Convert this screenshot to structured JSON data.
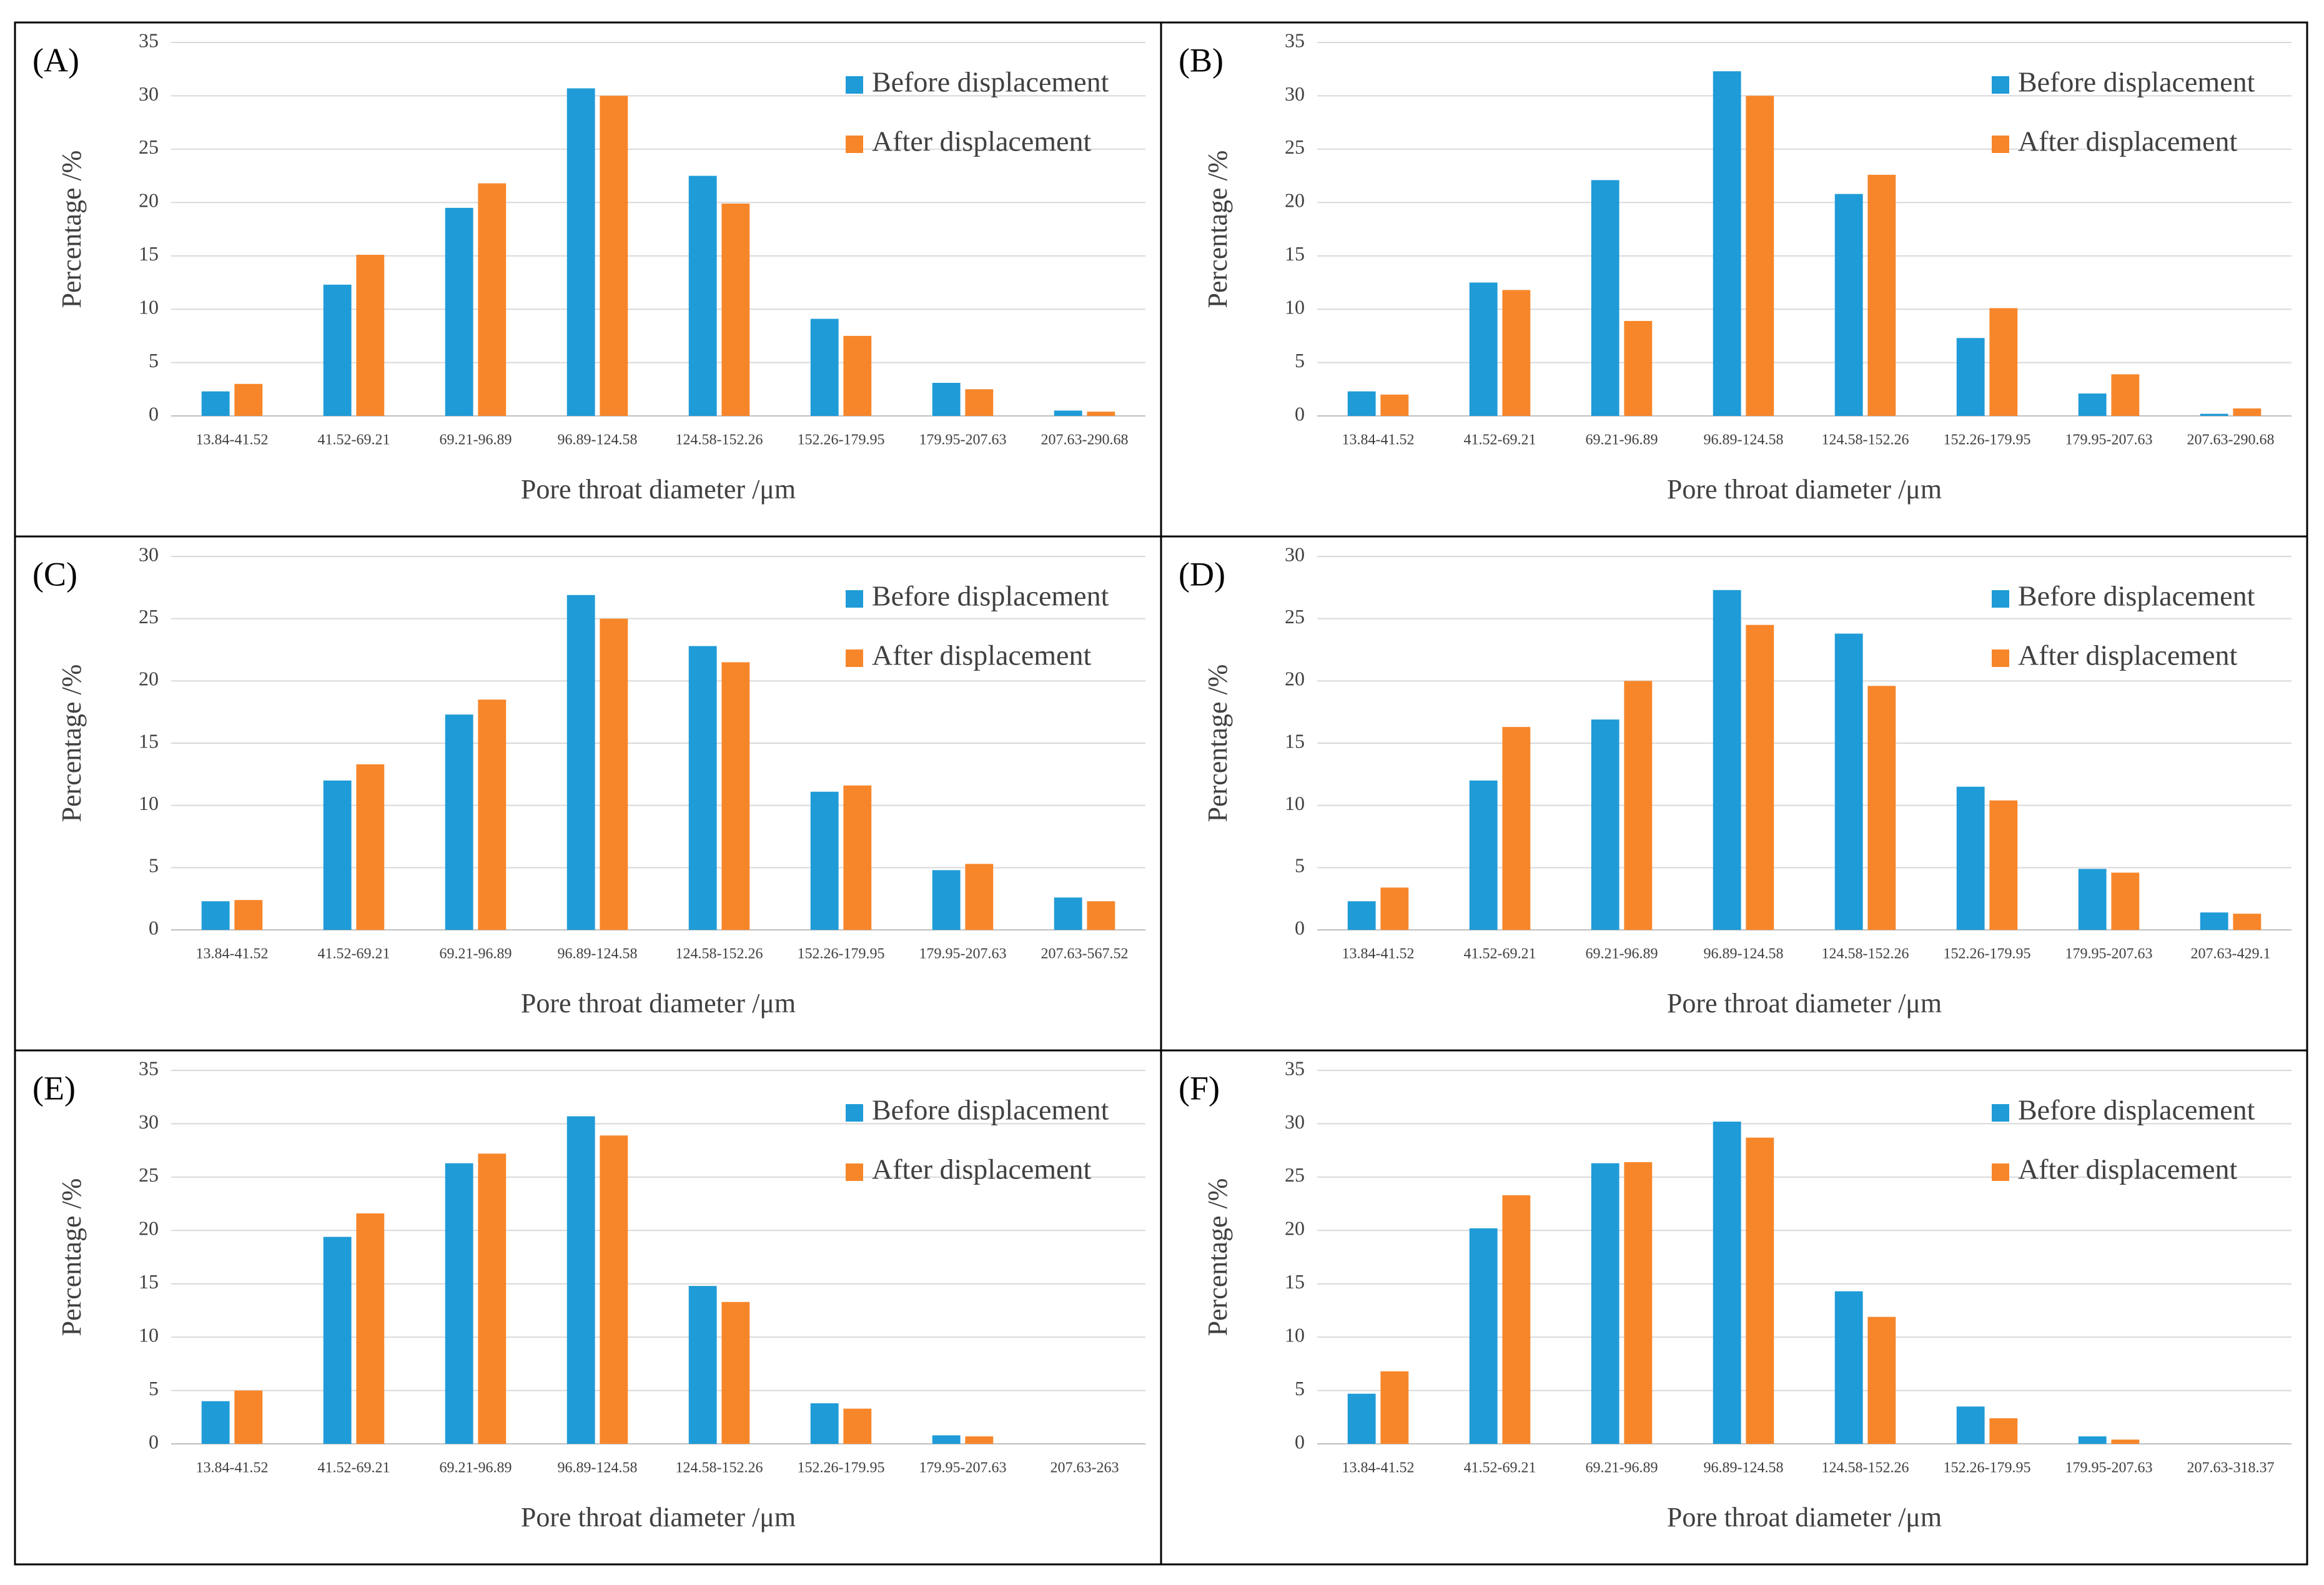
{
  "chart_data": [
    {
      "type": "bar",
      "label": "(A)",
      "xlabel": "Pore throat diameter /μm",
      "ylabel": "Percentage /%",
      "categories": [
        "13.84-41.52",
        "41.52-69.21",
        "69.21-96.89",
        "96.89-124.58",
        "124.58-152.26",
        "152.26-179.95",
        "179.95-207.63",
        "207.63-290.68"
      ],
      "series": [
        {
          "name": "Before displacement",
          "color": "#1f9bd7",
          "values": [
            2.3,
            12.3,
            19.5,
            30.7,
            22.5,
            9.1,
            3.1,
            0.5
          ]
        },
        {
          "name": "After displacement",
          "color": "#f7862a",
          "values": [
            3.0,
            15.1,
            21.8,
            30.0,
            19.9,
            7.5,
            2.5,
            0.4
          ]
        }
      ],
      "ylim": [
        0,
        35
      ],
      "yticks": [
        0,
        5,
        10,
        15,
        20,
        25,
        30,
        35
      ],
      "grid": true
    },
    {
      "type": "bar",
      "label": "(B)",
      "xlabel": "Pore throat diameter /μm",
      "ylabel": "Percentage /%",
      "categories": [
        "13.84-41.52",
        "41.52-69.21",
        "69.21-96.89",
        "96.89-124.58",
        "124.58-152.26",
        "152.26-179.95",
        "179.95-207.63",
        "207.63-290.68"
      ],
      "series": [
        {
          "name": "Before displacement",
          "color": "#1f9bd7",
          "values": [
            2.3,
            12.5,
            22.1,
            32.3,
            20.8,
            7.3,
            2.1,
            0.2
          ]
        },
        {
          "name": "After displacement",
          "color": "#f7862a",
          "values": [
            2.0,
            11.8,
            8.9,
            30.0,
            22.6,
            10.1,
            3.9,
            0.7
          ]
        }
      ],
      "ylim": [
        0,
        35
      ],
      "yticks": [
        0,
        5,
        10,
        15,
        20,
        25,
        30,
        35
      ],
      "grid": true
    },
    {
      "type": "bar",
      "label": "(C)",
      "xlabel": "Pore throat diameter /μm",
      "ylabel": "Percentage /%",
      "categories": [
        "13.84-41.52",
        "41.52-69.21",
        "69.21-96.89",
        "96.89-124.58",
        "124.58-152.26",
        "152.26-179.95",
        "179.95-207.63",
        "207.63-567.52"
      ],
      "series": [
        {
          "name": "Before displacement",
          "color": "#1f9bd7",
          "values": [
            2.3,
            12.0,
            17.3,
            26.9,
            22.8,
            11.1,
            4.8,
            2.6
          ]
        },
        {
          "name": "After displacement",
          "color": "#f7862a",
          "values": [
            2.4,
            13.3,
            18.5,
            25.0,
            21.5,
            11.6,
            5.3,
            2.3
          ]
        }
      ],
      "ylim": [
        0,
        30
      ],
      "yticks": [
        0,
        5,
        10,
        15,
        20,
        25,
        30
      ],
      "grid": true
    },
    {
      "type": "bar",
      "label": "(D)",
      "xlabel": "Pore throat diameter /μm",
      "ylabel": "Percentage /%",
      "categories": [
        "13.84-41.52",
        "41.52-69.21",
        "69.21-96.89",
        "96.89-124.58",
        "124.58-152.26",
        "152.26-179.95",
        "179.95-207.63",
        "207.63-429.1"
      ],
      "series": [
        {
          "name": "Before displacement",
          "color": "#1f9bd7",
          "values": [
            2.3,
            12.0,
            16.9,
            27.3,
            23.8,
            11.5,
            4.9,
            1.4
          ]
        },
        {
          "name": "After displacement",
          "color": "#f7862a",
          "values": [
            3.4,
            16.3,
            20.0,
            24.5,
            19.6,
            10.4,
            4.6,
            1.3
          ]
        }
      ],
      "ylim": [
        0,
        30
      ],
      "yticks": [
        0,
        5,
        10,
        15,
        20,
        25,
        30
      ],
      "grid": true
    },
    {
      "type": "bar",
      "label": "(E)",
      "xlabel": "Pore throat diameter /μm",
      "ylabel": "Percentage /%",
      "categories": [
        "13.84-41.52",
        "41.52-69.21",
        "69.21-96.89",
        "96.89-124.58",
        "124.58-152.26",
        "152.26-179.95",
        "179.95-207.63",
        "207.63-263"
      ],
      "series": [
        {
          "name": "Before displacement",
          "color": "#1f9bd7",
          "values": [
            4.0,
            19.4,
            26.3,
            30.7,
            14.8,
            3.8,
            0.8,
            0
          ]
        },
        {
          "name": "After displacement",
          "color": "#f7862a",
          "values": [
            5.0,
            21.6,
            27.2,
            28.9,
            13.3,
            3.3,
            0.7,
            0
          ]
        }
      ],
      "ylim": [
        0,
        35
      ],
      "yticks": [
        0,
        5,
        10,
        15,
        20,
        25,
        30,
        35
      ],
      "grid": true
    },
    {
      "type": "bar",
      "label": "(F)",
      "xlabel": "Pore throat diameter /μm",
      "ylabel": "Percentage /%",
      "categories": [
        "13.84-41.52",
        "41.52-69.21",
        "69.21-96.89",
        "96.89-124.58",
        "124.58-152.26",
        "152.26-179.95",
        "179.95-207.63",
        "207.63-318.37"
      ],
      "series": [
        {
          "name": "Before displacement",
          "color": "#1f9bd7",
          "values": [
            4.7,
            20.2,
            26.3,
            30.2,
            14.3,
            3.5,
            0.7,
            0
          ]
        },
        {
          "name": "After displacement",
          "color": "#f7862a",
          "values": [
            6.8,
            23.3,
            26.4,
            28.7,
            11.9,
            2.4,
            0.4,
            0
          ]
        }
      ],
      "ylim": [
        0,
        35
      ],
      "yticks": [
        0,
        5,
        10,
        15,
        20,
        25,
        30,
        35
      ],
      "grid": true
    }
  ]
}
